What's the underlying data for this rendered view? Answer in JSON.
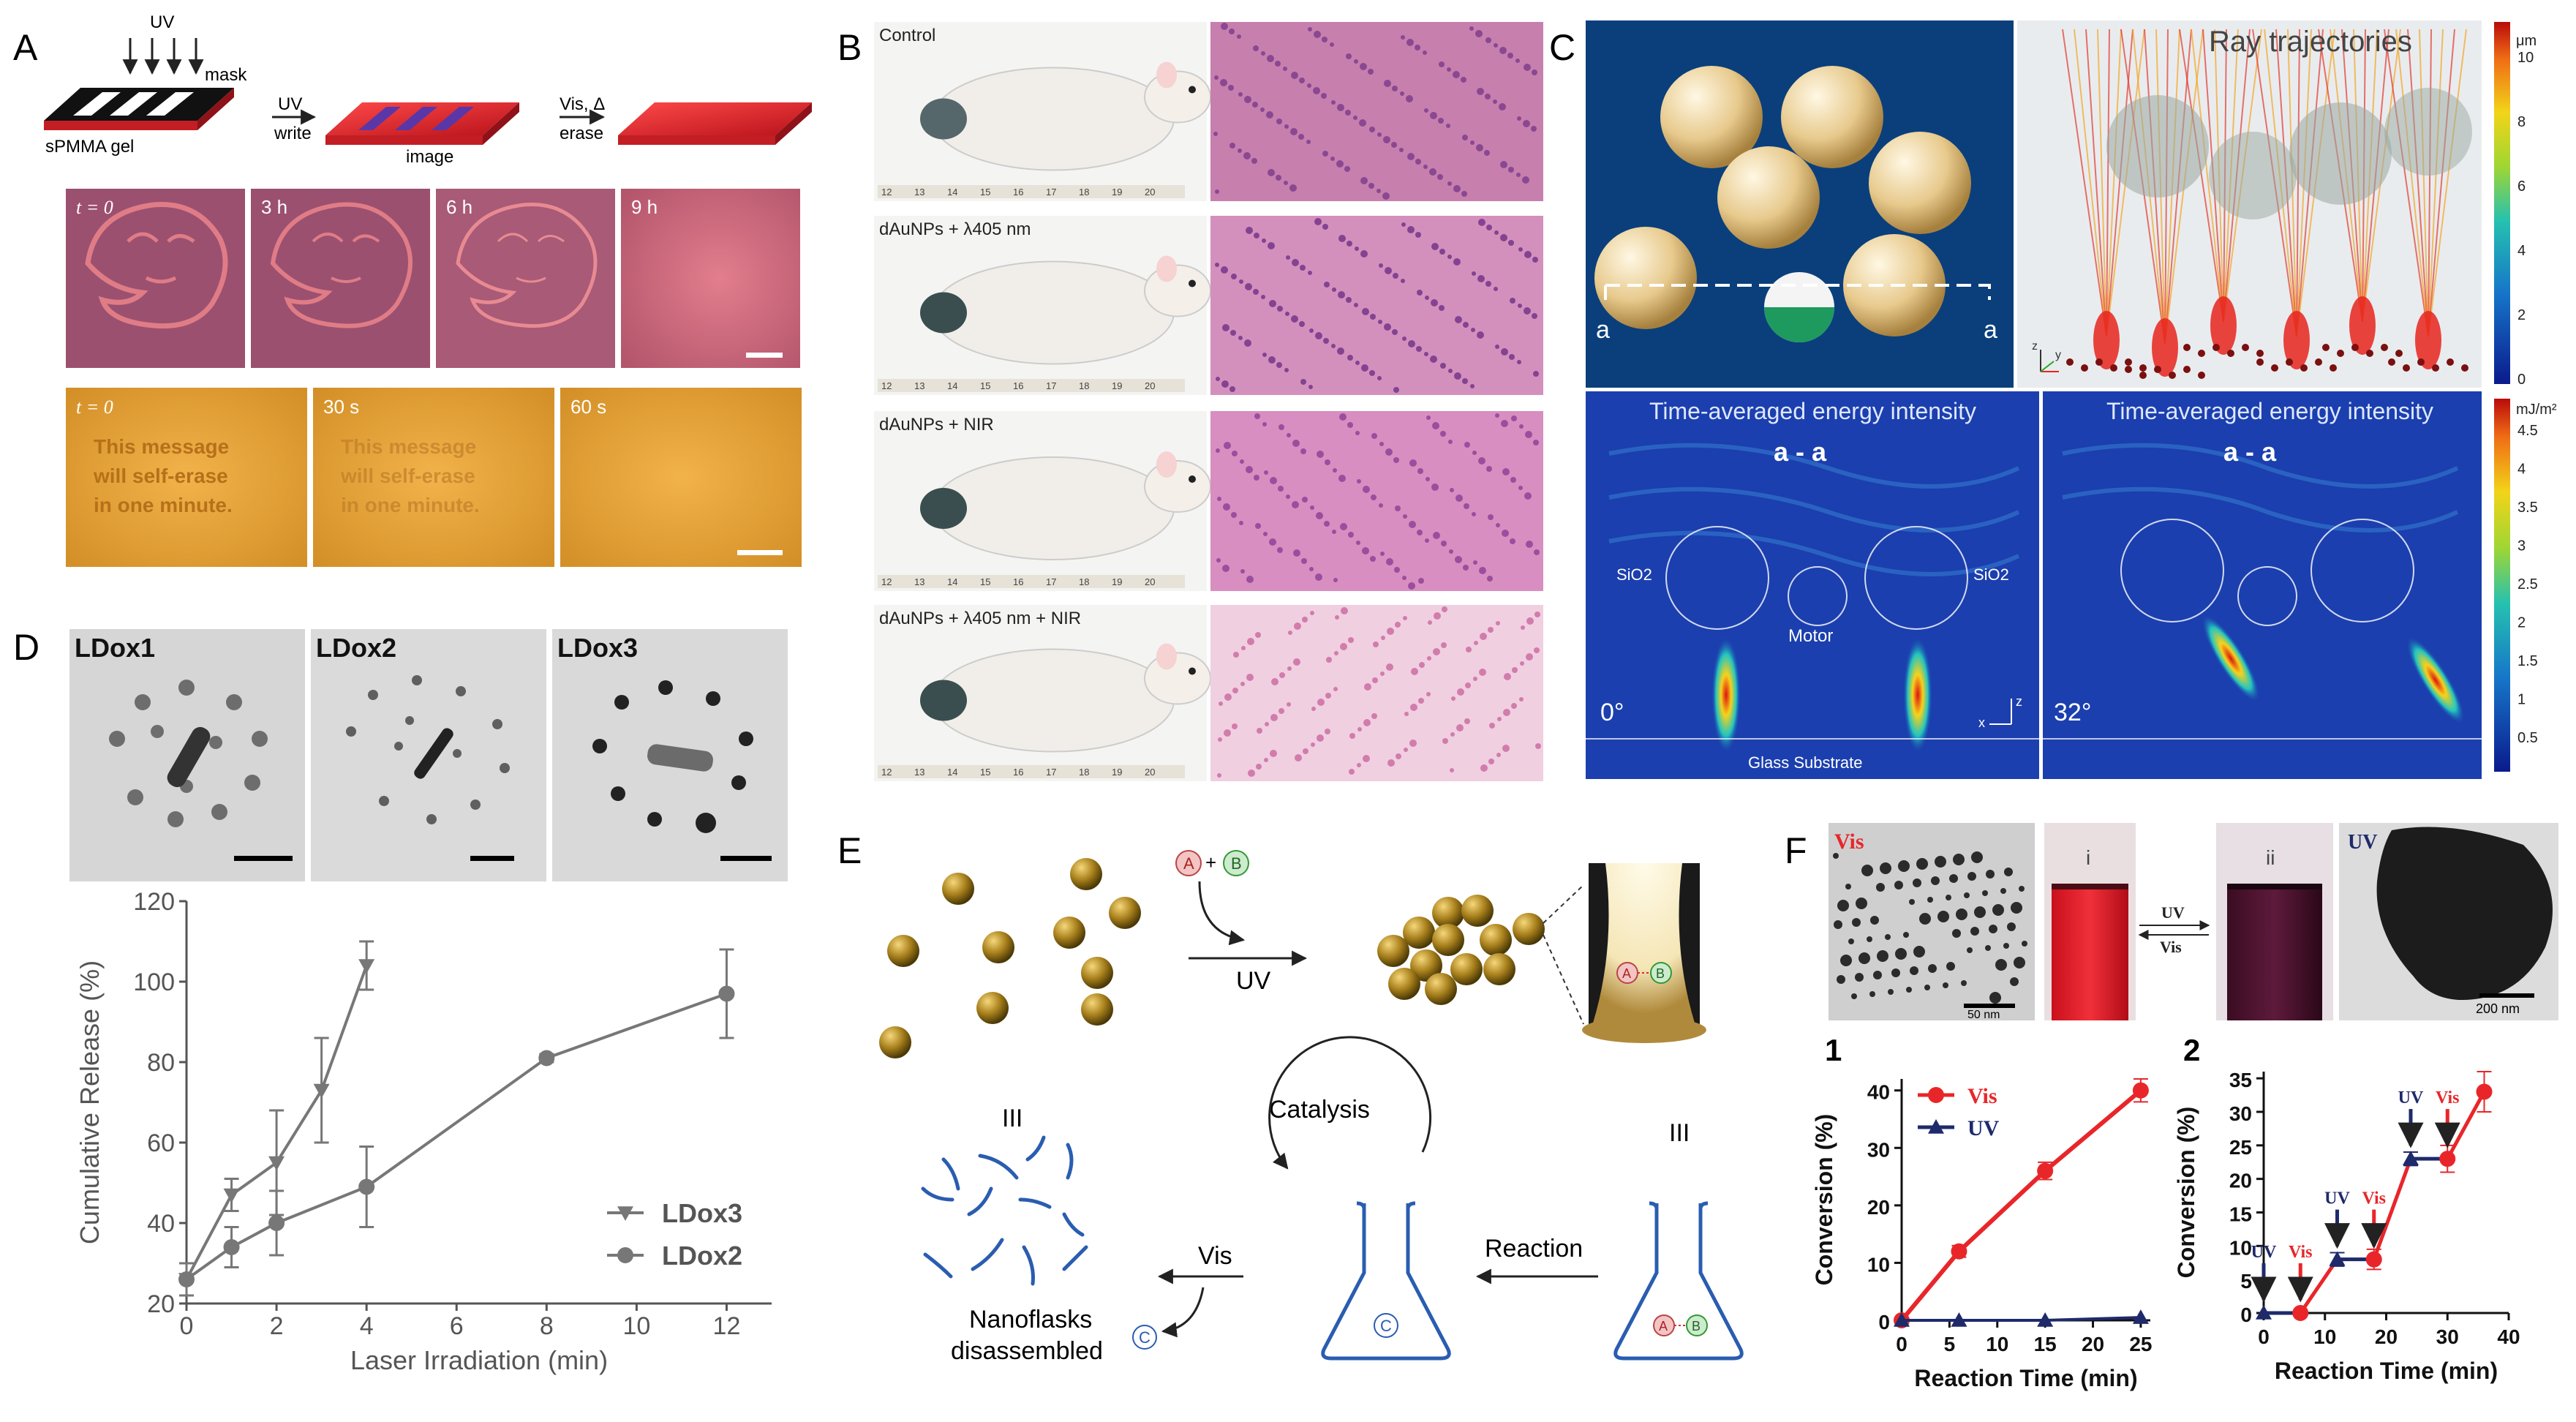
{
  "panels": {
    "A": "A",
    "B": "B",
    "C": "C",
    "D": "D",
    "E": "E",
    "F": "F"
  },
  "a": {
    "uv_top": "UV",
    "mask": "mask",
    "gel": "sPMMA gel",
    "uv_arrow": "UV",
    "write": "write",
    "image": "image",
    "vis_arrow": "Vis, Δ",
    "erase": "erase",
    "row1_times": [
      "t = 0",
      "3 h",
      "6 h",
      "9 h"
    ],
    "row2_times": [
      "t = 0",
      "30 s",
      "60 s"
    ],
    "message_lines": [
      "This message",
      "will self-erase",
      "in one minute."
    ]
  },
  "b": {
    "labels": [
      "Control",
      "dAuNPs + λ405 nm",
      "dAuNPs + NIR",
      "dAuNPs + λ405 nm + NIR"
    ],
    "ruler_ticks": [
      "12",
      "13",
      "14",
      "15",
      "16",
      "17",
      "18",
      "19",
      "20"
    ]
  },
  "c": {
    "ray_title": "Ray trajectories",
    "section_a_left": "a",
    "section_a_right": "a",
    "colorbar_top_unit": "μm",
    "colorbar_top_ticks": [
      "10",
      "8",
      "6",
      "4",
      "2",
      "0"
    ],
    "energy_title": "Time-averaged energy intensity",
    "section": "a - a",
    "sio2": "SiO2",
    "motor": "Motor",
    "angle_left": "0°",
    "angle_right": "32°",
    "substrate": "Glass Substrate",
    "colorbar_bottom_unit": "mJ/m²",
    "colorbar_bottom_ticks": [
      "4.5",
      "4",
      "3.5",
      "3",
      "2.5",
      "2",
      "1.5",
      "1",
      "0.5"
    ],
    "axes": {
      "z": "z",
      "x": "x",
      "y": "y"
    }
  },
  "d": {
    "tem_labels": [
      "LDox1",
      "LDox2",
      "LDox3"
    ]
  },
  "e": {
    "reactants": "A + B",
    "uv": "UV",
    "catalysis": "Catalysis",
    "iii_left": "III",
    "iii_right": "III",
    "reaction": "Reaction",
    "vis": "Vis",
    "disassembled_line1": "Nanoflasks",
    "disassembled_line2": "disassembled",
    "letter_a": "A",
    "letter_b": "B",
    "letter_c": "C"
  },
  "f": {
    "tem_vis": "Vis",
    "vial_i": "i",
    "vial_ii": "ii",
    "arrow_uv": "UV",
    "arrow_vis": "Vis",
    "tem_uv": "UV",
    "scale_left": "50 nm",
    "scale_right": "200 nm",
    "plot1_index": "1",
    "plot2_index": "2"
  },
  "colors": {
    "red_series": "#e8262a",
    "navy_series": "#1f2a6b",
    "grey_series": "#777777",
    "flask_blue": "#2a5db0",
    "gold": "#8c6a12"
  },
  "chart_data": [
    {
      "id": "D",
      "type": "line",
      "xlabel": "Laser Irradiation (min)",
      "ylabel": "Cumulative Release (%)",
      "xlim": [
        0,
        13
      ],
      "ylim": [
        20,
        120
      ],
      "xticks": [
        0,
        2,
        4,
        6,
        8,
        10,
        12
      ],
      "yticks": [
        20,
        40,
        60,
        80,
        100,
        120
      ],
      "legend_position": "bottom-right",
      "series": [
        {
          "name": "LDox3",
          "marker": "triangle-down",
          "x": [
            0,
            1,
            2,
            3,
            4
          ],
          "y": [
            26,
            47,
            55,
            73,
            104
          ],
          "err": [
            4,
            4,
            13,
            13,
            6
          ]
        },
        {
          "name": "LDox2",
          "marker": "circle",
          "x": [
            0,
            1,
            2,
            4,
            8,
            12
          ],
          "y": [
            26,
            34,
            40,
            49,
            81,
            97
          ],
          "err": [
            4,
            5,
            8,
            10,
            1,
            11
          ]
        }
      ]
    },
    {
      "id": "F1",
      "type": "line",
      "xlabel": "Reaction Time (min)",
      "ylabel": "Conversion (%)",
      "xlim": [
        0,
        26
      ],
      "ylim": [
        0,
        42
      ],
      "xticks": [
        0,
        5,
        10,
        15,
        20,
        25
      ],
      "yticks": [
        0,
        10,
        20,
        30,
        40
      ],
      "legend_position": "top-left",
      "series": [
        {
          "name": "Vis",
          "marker": "circle",
          "x": [
            0,
            6,
            15,
            25
          ],
          "y": [
            0,
            12,
            26,
            40
          ],
          "err": [
            0,
            1,
            1.5,
            2
          ]
        },
        {
          "name": "UV",
          "marker": "triangle",
          "x": [
            0,
            6,
            15,
            25
          ],
          "y": [
            0,
            0,
            0,
            0.5
          ],
          "err": [
            0,
            0,
            0,
            0
          ]
        }
      ]
    },
    {
      "id": "F2",
      "type": "line",
      "xlabel": "Reaction Time (min)",
      "ylabel": "Conversion (%)",
      "xlim": [
        0,
        40
      ],
      "ylim": [
        0,
        36
      ],
      "xticks": [
        0,
        10,
        20,
        30,
        40
      ],
      "yticks": [
        0,
        5,
        10,
        15,
        20,
        25,
        30,
        35
      ],
      "annotations": [
        "UV",
        "Vis",
        "UV",
        "Vis",
        "UV",
        "Vis"
      ],
      "series": [
        {
          "name": "",
          "marker": "mixed",
          "x": [
            0,
            6,
            12,
            18,
            24,
            30,
            36
          ],
          "y": [
            0,
            0,
            8,
            8,
            23,
            23,
            33
          ],
          "err": [
            0,
            0,
            1,
            1.5,
            1,
            2,
            3
          ]
        }
      ]
    }
  ]
}
